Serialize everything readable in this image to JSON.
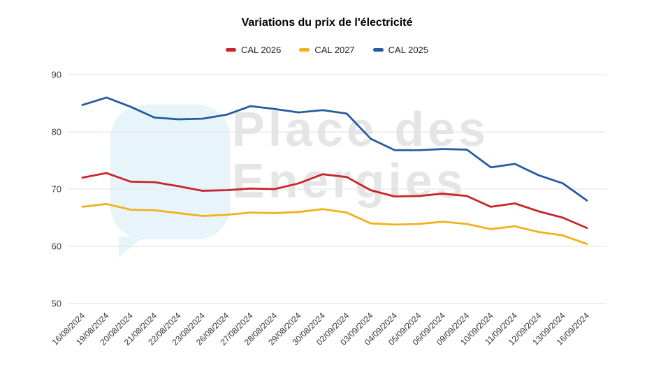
{
  "page": {
    "background": "#ffffff"
  },
  "watermark": {
    "line1": "Place des",
    "line2": "Energies",
    "logo_color": "#e7f5fa",
    "text_color": "#e5e5e5"
  },
  "chart_data": {
    "type": "line",
    "title": "Variations du prix de l'électricité",
    "xlabel": "",
    "ylabel": "",
    "legend_position": "top",
    "grid": true,
    "ylim": [
      50,
      90
    ],
    "yticks": [
      50,
      60,
      70,
      80,
      90
    ],
    "gridline_color": "#e2e2e2",
    "axis_text_color": "#404040",
    "categories": [
      "16/08/2024",
      "19/08/2024",
      "20/08/2024",
      "21/08/2024",
      "22/08/2024",
      "23/08/2024",
      "26/08/2024",
      "27/08/2024",
      "28/08/2024",
      "29/08/2024",
      "30/08/2024",
      "02/09/2024",
      "03/09/2024",
      "04/09/2024",
      "05/09/2024",
      "06/09/2024",
      "09/09/2024",
      "10/09/2024",
      "11/09/2024",
      "12/09/2024",
      "13/09/2024",
      "16/09/2024"
    ],
    "series": [
      {
        "name": "CAL 2026",
        "color": "#c9242b",
        "values": [
          72.0,
          72.8,
          71.3,
          71.2,
          70.5,
          69.7,
          69.8,
          70.1,
          70.0,
          71.0,
          72.6,
          72.1,
          69.8,
          68.7,
          68.8,
          69.2,
          68.8,
          66.9,
          67.5,
          66.1,
          65.0,
          63.2
        ]
      },
      {
        "name": "CAL 2027",
        "color": "#f1b01d",
        "values": [
          66.9,
          67.4,
          66.4,
          66.3,
          65.8,
          65.3,
          65.5,
          65.9,
          65.8,
          66.0,
          66.5,
          65.9,
          64.0,
          63.8,
          63.9,
          64.3,
          63.9,
          63.0,
          63.5,
          62.5,
          61.9,
          60.4
        ]
      },
      {
        "name": "CAL 2025",
        "color": "#235d9f",
        "values": [
          84.7,
          86.0,
          84.4,
          82.5,
          82.2,
          82.3,
          83.0,
          84.5,
          84.0,
          83.4,
          83.8,
          83.2,
          78.8,
          76.8,
          76.8,
          77.0,
          76.9,
          73.8,
          74.4,
          72.4,
          71.0,
          68.0
        ]
      }
    ]
  }
}
